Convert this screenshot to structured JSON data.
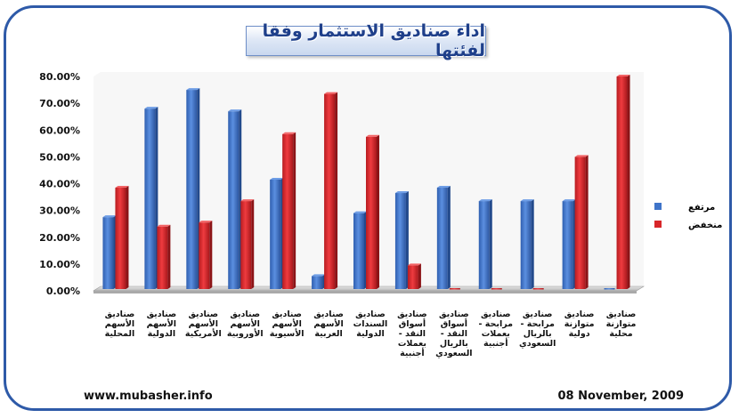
{
  "title": "اداء صناديق الاستثمار وفقا لفئتها",
  "footer": {
    "website": "www.mubasher.info",
    "date": "08 November, 2009"
  },
  "colors": {
    "high": "#3f74c9",
    "low": "#d8262a",
    "frame": "#2e5aa8"
  },
  "chart_data": {
    "type": "bar",
    "ylim": [
      0,
      80
    ],
    "y_ticks": [
      "0.00%",
      "10.00%",
      "20.00%",
      "30.00%",
      "40.00%",
      "50.00%",
      "60.00%",
      "70.00%",
      "80.00%"
    ],
    "grid": false,
    "legend_position": "right",
    "categories": [
      [
        "صناديق",
        "الأسهم",
        "المحلية"
      ],
      [
        "صناديق",
        "الأسهم",
        "الدولية"
      ],
      [
        "صناديق",
        "الأسهم",
        "الأمريكية"
      ],
      [
        "صناديق",
        "الأسهم",
        "الأوروبية"
      ],
      [
        "صناديق",
        "الأسهم",
        "الأسيوية"
      ],
      [
        "صناديق",
        "الأسهم",
        "العربية"
      ],
      [
        "صناديق",
        "السندات",
        "الدولية"
      ],
      [
        "صناديق",
        "أسواق",
        "النقد -",
        "بعملات",
        "أجنبية"
      ],
      [
        "صناديق",
        "أسواق",
        "النقد -",
        "بالريال",
        "السعودي"
      ],
      [
        "صناديق",
        "مرابحة -",
        "بعملات",
        "أجنبية"
      ],
      [
        "صناديق",
        "مرابحة -",
        "بالريال",
        "السعودي"
      ],
      [
        "صناديق",
        "متوازنة",
        "دولية"
      ],
      [
        "صناديق",
        "متوازنة",
        "محلية"
      ]
    ],
    "series": [
      {
        "name": "مرتفع",
        "values": [
          27.5,
          68,
          75,
          67,
          41.5,
          5.5,
          29,
          36.5,
          38.5,
          33.5,
          33.5,
          33.5,
          0.5
        ]
      },
      {
        "name": "منخفض",
        "values": [
          38.5,
          24,
          25.5,
          33.5,
          58.5,
          73.5,
          57.5,
          9.5,
          0.5,
          0.5,
          0.5,
          50,
          80
        ]
      }
    ]
  }
}
